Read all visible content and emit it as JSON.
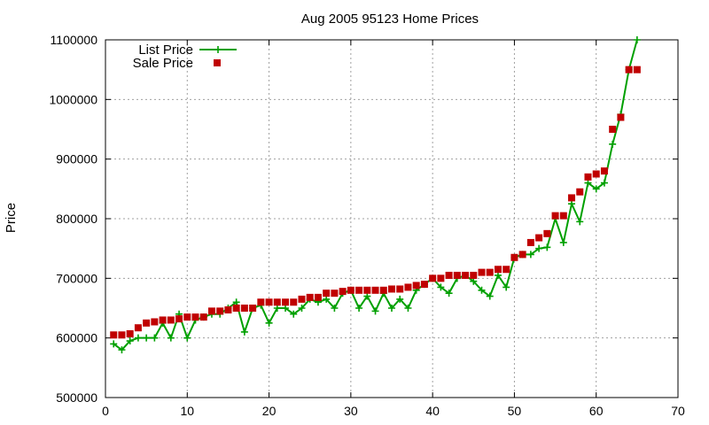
{
  "chart_data": {
    "type": "line",
    "title": "Aug 2005 95123 Home Prices",
    "xlabel": "",
    "ylabel": "Price",
    "xlim": [
      0,
      70
    ],
    "ylim": [
      500000,
      1100000
    ],
    "x_ticks": [
      "0",
      "10",
      "20",
      "30",
      "40",
      "50",
      "60",
      "70"
    ],
    "y_ticks": [
      "500000",
      "600000",
      "700000",
      "800000",
      "900000",
      "1000000",
      "1100000"
    ],
    "grid": true,
    "legend": "top-left",
    "series": [
      {
        "name": "List Price",
        "style": "line-with-plus-markers",
        "color": "#00a000",
        "x": [
          1,
          2,
          3,
          4,
          5,
          6,
          7,
          8,
          9,
          10,
          11,
          12,
          13,
          14,
          15,
          16,
          17,
          18,
          19,
          20,
          21,
          22,
          23,
          24,
          25,
          26,
          27,
          28,
          29,
          30,
          31,
          32,
          33,
          34,
          35,
          36,
          37,
          38,
          39,
          40,
          41,
          42,
          43,
          44,
          45,
          46,
          47,
          48,
          49,
          50,
          51,
          52,
          53,
          54,
          55,
          56,
          57,
          58,
          59,
          60,
          61,
          62,
          63,
          64,
          65
        ],
        "values": [
          590000,
          580000,
          595000,
          600000,
          600000,
          600000,
          625000,
          600000,
          640000,
          600000,
          630000,
          635000,
          640000,
          640000,
          650000,
          660000,
          610000,
          650000,
          655000,
          625000,
          650000,
          650000,
          640000,
          650000,
          665000,
          660000,
          665000,
          650000,
          675000,
          680000,
          650000,
          670000,
          645000,
          675000,
          650000,
          665000,
          650000,
          680000,
          690000,
          700000,
          685000,
          675000,
          700000,
          705000,
          695000,
          680000,
          670000,
          705000,
          685000,
          735000,
          740000,
          740000,
          750000,
          752000,
          800000,
          760000,
          825000,
          795000,
          860000,
          850000,
          860000,
          925000,
          975000,
          1050000,
          1100000
        ]
      },
      {
        "name": "Sale Price",
        "style": "square-markers",
        "color": "#c00000",
        "x": [
          1,
          2,
          3,
          4,
          5,
          6,
          7,
          8,
          9,
          10,
          11,
          12,
          13,
          14,
          15,
          16,
          17,
          18,
          19,
          20,
          21,
          22,
          23,
          24,
          25,
          26,
          27,
          28,
          29,
          30,
          31,
          32,
          33,
          34,
          35,
          36,
          37,
          38,
          39,
          40,
          41,
          42,
          43,
          44,
          45,
          46,
          47,
          48,
          49,
          50,
          51,
          52,
          53,
          54,
          55,
          56,
          57,
          58,
          59,
          60,
          61,
          62,
          63,
          64,
          65
        ],
        "values": [
          605000,
          605000,
          607000,
          617000,
          625000,
          627000,
          630000,
          630000,
          632000,
          635000,
          635000,
          635000,
          645000,
          645000,
          647000,
          650000,
          650000,
          650000,
          660000,
          660000,
          660000,
          660000,
          660000,
          665000,
          668000,
          668000,
          675000,
          675000,
          678000,
          680000,
          680000,
          680000,
          680000,
          680000,
          682000,
          682000,
          685000,
          688000,
          690000,
          700000,
          700000,
          705000,
          705000,
          705000,
          705000,
          710000,
          710000,
          715000,
          715000,
          735000,
          740000,
          760000,
          768000,
          775000,
          805000,
          805000,
          835000,
          845000,
          870000,
          875000,
          880000,
          950000,
          970000,
          1050000,
          1050000
        ]
      }
    ]
  }
}
